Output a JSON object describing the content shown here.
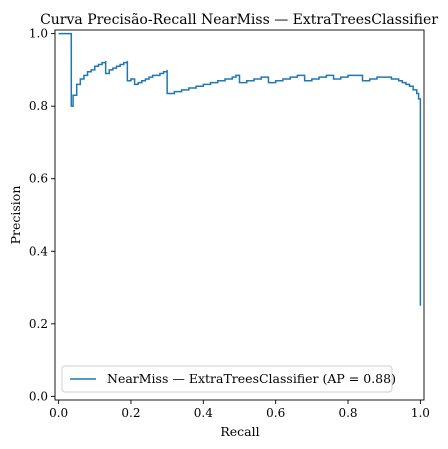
{
  "chart_data": {
    "type": "line",
    "title": "Curva Precisão-Recall NearMiss — ExtraTreesClassifier",
    "xlabel": "Recall",
    "ylabel": "Precision",
    "xlim": [
      -0.01,
      1.01
    ],
    "ylim": [
      -0.01,
      1.01
    ],
    "xticks": [
      "0.0",
      "0.2",
      "0.4",
      "0.6",
      "0.8",
      "1.0"
    ],
    "yticks": [
      "0.0",
      "0.2",
      "0.4",
      "0.6",
      "0.8",
      "1.0"
    ],
    "grid": false,
    "legend_position": "lower-left",
    "line_color": "#1f77b4",
    "series": [
      {
        "name": "NearMiss — ExtraTreesClassifier (AP = 0.88)",
        "step": true,
        "x": [
          0.0,
          0.035,
          0.035,
          0.04,
          0.05,
          0.06,
          0.07,
          0.08,
          0.09,
          0.1,
          0.11,
          0.12,
          0.13,
          0.13,
          0.14,
          0.15,
          0.16,
          0.17,
          0.18,
          0.19,
          0.19,
          0.2,
          0.21,
          0.22,
          0.23,
          0.24,
          0.25,
          0.26,
          0.28,
          0.29,
          0.3,
          0.3,
          0.32,
          0.34,
          0.36,
          0.38,
          0.4,
          0.42,
          0.44,
          0.46,
          0.48,
          0.49,
          0.5,
          0.52,
          0.54,
          0.56,
          0.58,
          0.6,
          0.62,
          0.64,
          0.66,
          0.68,
          0.7,
          0.72,
          0.74,
          0.76,
          0.78,
          0.8,
          0.82,
          0.84,
          0.86,
          0.88,
          0.9,
          0.92,
          0.94,
          0.95,
          0.96,
          0.97,
          0.98,
          0.99,
          0.995,
          1.0
        ],
        "y": [
          1.0,
          1.0,
          0.8,
          0.83,
          0.86,
          0.875,
          0.885,
          0.895,
          0.9,
          0.91,
          0.915,
          0.92,
          0.925,
          0.89,
          0.9,
          0.905,
          0.91,
          0.915,
          0.92,
          0.925,
          0.87,
          0.875,
          0.86,
          0.865,
          0.87,
          0.875,
          0.88,
          0.885,
          0.89,
          0.895,
          0.9,
          0.835,
          0.84,
          0.845,
          0.85,
          0.855,
          0.86,
          0.865,
          0.87,
          0.875,
          0.88,
          0.885,
          0.865,
          0.87,
          0.875,
          0.88,
          0.865,
          0.87,
          0.875,
          0.88,
          0.885,
          0.87,
          0.875,
          0.88,
          0.885,
          0.875,
          0.88,
          0.885,
          0.885,
          0.87,
          0.875,
          0.88,
          0.88,
          0.875,
          0.87,
          0.865,
          0.86,
          0.855,
          0.845,
          0.835,
          0.82,
          0.25
        ]
      }
    ]
  }
}
